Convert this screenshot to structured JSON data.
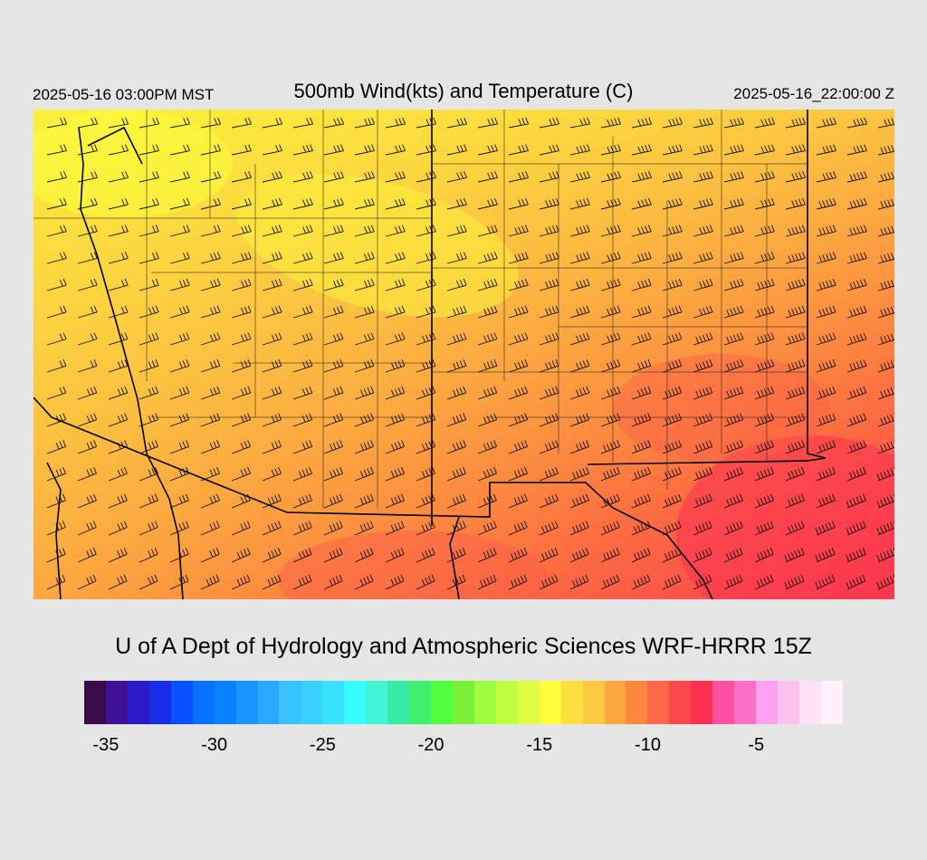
{
  "header": {
    "valid_local": "2025-05-16 03:00PM MST",
    "title": "500mb Wind(kts) and Temperature (C)",
    "valid_utc": "2025-05-16_22:00:00 Z"
  },
  "footer": {
    "credit": "U of A Dept of Hydrology and Atmospheric Sciences WRF-HRRR 15Z"
  },
  "colorbar": {
    "units": "C",
    "colors": [
      "#3a0a4a",
      "#3d1096",
      "#2a1ac8",
      "#1a2ee8",
      "#0a50ff",
      "#0a70ff",
      "#0a82ff",
      "#1a94ff",
      "#28a8ff",
      "#38c2ff",
      "#38d0ff",
      "#38e2ff",
      "#38fcff",
      "#40f4d4",
      "#38eca8",
      "#40ee70",
      "#50ff40",
      "#7af038",
      "#a0fc40",
      "#c0fc40",
      "#e0fc40",
      "#fcfc3c",
      "#fce040",
      "#fcc840",
      "#fca840",
      "#fc8840",
      "#fc6848",
      "#fc4848",
      "#fc3050",
      "#fc50a0",
      "#fc70c8",
      "#fca0f0",
      "#fcc0ec",
      "#fce0f6",
      "#fcf0fa"
    ],
    "tick_labels": [
      "-35",
      "-30",
      "-25",
      "-20",
      "-15",
      "-10",
      "-5"
    ]
  },
  "map": {
    "field": "500mb temperature",
    "overlay": "wind barbs (kts)",
    "temperature_range_shown": [
      -16,
      -9
    ]
  }
}
